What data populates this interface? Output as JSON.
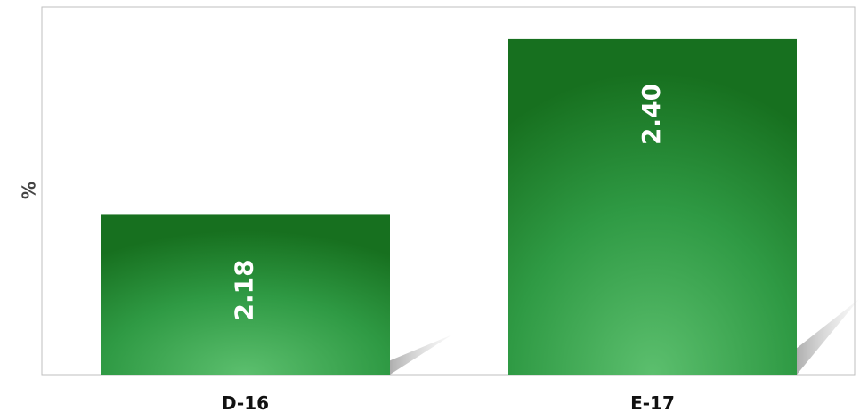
{
  "chart_data": {
    "type": "bar",
    "categories": [
      "D-16",
      "E-17"
    ],
    "values": [
      2.18,
      2.4
    ],
    "data_labels": [
      "2.18",
      "2.40"
    ],
    "title": "",
    "xlabel": "",
    "ylabel": "%",
    "ylim": [
      1.98,
      2.44
    ],
    "grid": false,
    "legend": "none",
    "colors": {
      "bar_light": "#5cbf6e",
      "bar_mid": "#2f9a44",
      "bar_dark": "#17701f",
      "shadow": "#cfcfcf",
      "frame": "#bfbfbf"
    }
  }
}
